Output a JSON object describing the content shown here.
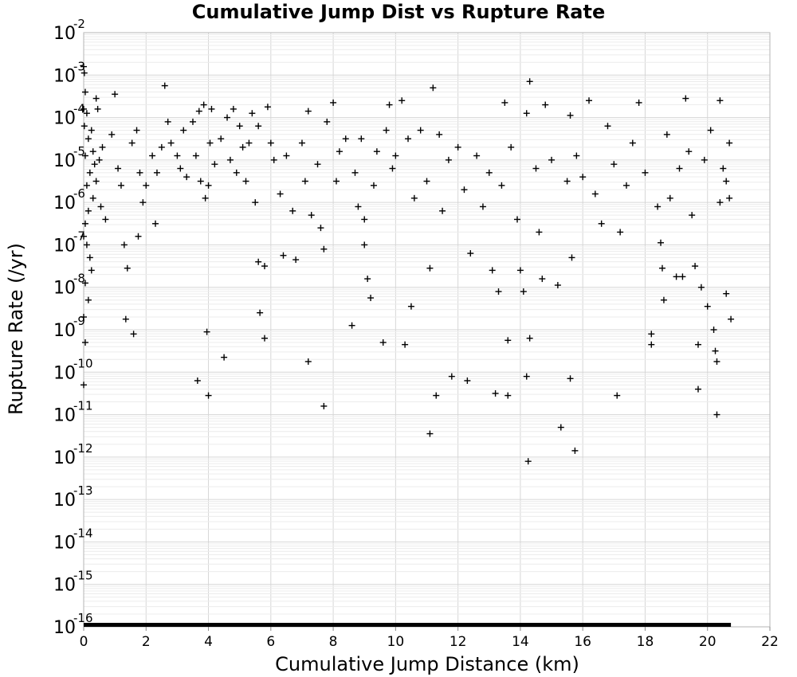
{
  "chart_data": {
    "type": "scatter",
    "title": "Cumulative Jump Dist vs Rupture Rate",
    "xlabel": "Cumulative Jump Distance (km)",
    "ylabel": "Rupture Rate (/yr)",
    "xlim": [
      0,
      22
    ],
    "ylim_log10": [
      -16,
      -2
    ],
    "yscale": "log",
    "grid": true,
    "marker": "plus",
    "marker_color": "#000000",
    "x_ticks": [
      0,
      2,
      4,
      6,
      8,
      10,
      12,
      14,
      16,
      18,
      20,
      22
    ],
    "y_tick_base": "10",
    "y_tick_exponents": [
      "-16",
      "-15",
      "-14",
      "-13",
      "-12",
      "-11",
      "-10",
      "-9",
      "-8",
      "-7",
      "-6",
      "-5",
      "-4",
      "-3",
      "-2"
    ],
    "floor_band": {
      "x_from": 0,
      "x_to": 20.75,
      "log10_y": -16
    },
    "points": [
      [
        0.0,
        -2.8
      ],
      [
        0.02,
        -2.95
      ],
      [
        0.05,
        -3.4
      ],
      [
        0.0,
        -3.8
      ],
      [
        0.1,
        -3.9
      ],
      [
        0.02,
        -4.2
      ],
      [
        0.15,
        -4.5
      ],
      [
        0.05,
        -4.9
      ],
      [
        0.25,
        -4.3
      ],
      [
        0.3,
        -4.8
      ],
      [
        0.4,
        -3.55
      ],
      [
        0.45,
        -3.8
      ],
      [
        0.35,
        -5.1
      ],
      [
        0.5,
        -5.0
      ],
      [
        0.6,
        -4.7
      ],
      [
        0.2,
        -5.3
      ],
      [
        0.1,
        -5.6
      ],
      [
        0.3,
        -5.9
      ],
      [
        0.15,
        -6.2
      ],
      [
        0.05,
        -6.5
      ],
      [
        0.4,
        -5.5
      ],
      [
        0.55,
        -6.1
      ],
      [
        0.7,
        -6.4
      ],
      [
        0.0,
        -6.8
      ],
      [
        0.1,
        -7.0
      ],
      [
        0.2,
        -7.3
      ],
      [
        0.25,
        -7.6
      ],
      [
        0.05,
        -7.9
      ],
      [
        0.15,
        -8.3
      ],
      [
        0.0,
        -8.7
      ],
      [
        0.05,
        -9.3
      ],
      [
        0.0,
        -10.3
      ],
      [
        0.9,
        -4.4
      ],
      [
        1.0,
        -3.45
      ],
      [
        1.1,
        -5.2
      ],
      [
        1.3,
        -7.0
      ],
      [
        1.4,
        -7.55
      ],
      [
        1.2,
        -5.6
      ],
      [
        1.35,
        -8.75
      ],
      [
        1.6,
        -9.1
      ],
      [
        1.55,
        -4.6
      ],
      [
        1.7,
        -4.3
      ],
      [
        1.8,
        -5.3
      ],
      [
        1.9,
        -6.0
      ],
      [
        2.0,
        -5.6
      ],
      [
        1.75,
        -6.8
      ],
      [
        2.2,
        -4.9
      ],
      [
        2.3,
        -6.5
      ],
      [
        2.35,
        -5.3
      ],
      [
        2.5,
        -4.7
      ],
      [
        2.6,
        -3.25
      ],
      [
        2.7,
        -4.1
      ],
      [
        2.8,
        -4.6
      ],
      [
        3.0,
        -4.9
      ],
      [
        3.1,
        -5.2
      ],
      [
        3.2,
        -4.3
      ],
      [
        3.3,
        -5.4
      ],
      [
        3.5,
        -4.1
      ],
      [
        3.6,
        -4.9
      ],
      [
        3.7,
        -3.85
      ],
      [
        3.75,
        -5.5
      ],
      [
        3.85,
        -3.7
      ],
      [
        3.9,
        -5.9
      ],
      [
        4.0,
        -5.6
      ],
      [
        4.05,
        -4.6
      ],
      [
        4.1,
        -3.8
      ],
      [
        4.2,
        -5.1
      ],
      [
        3.65,
        -10.2
      ],
      [
        3.95,
        -9.05
      ],
      [
        4.0,
        -10.55
      ],
      [
        4.5,
        -9.65
      ],
      [
        4.4,
        -4.5
      ],
      [
        4.6,
        -4.0
      ],
      [
        4.7,
        -5.0
      ],
      [
        4.8,
        -3.8
      ],
      [
        4.9,
        -5.3
      ],
      [
        5.0,
        -4.2
      ],
      [
        5.1,
        -4.7
      ],
      [
        5.2,
        -5.5
      ],
      [
        5.3,
        -4.6
      ],
      [
        5.4,
        -3.9
      ],
      [
        5.5,
        -6.0
      ],
      [
        5.6,
        -4.2
      ],
      [
        5.6,
        -7.4
      ],
      [
        5.65,
        -8.6
      ],
      [
        5.8,
        -9.2
      ],
      [
        5.8,
        -7.5
      ],
      [
        5.9,
        -3.75
      ],
      [
        6.0,
        -4.6
      ],
      [
        6.1,
        -5.0
      ],
      [
        6.3,
        -5.8
      ],
      [
        6.4,
        -7.25
      ],
      [
        6.5,
        -4.9
      ],
      [
        6.7,
        -6.2
      ],
      [
        6.8,
        -7.35
      ],
      [
        7.0,
        -4.6
      ],
      [
        7.2,
        -3.85
      ],
      [
        7.1,
        -5.5
      ],
      [
        7.3,
        -6.3
      ],
      [
        7.2,
        -9.75
      ],
      [
        7.5,
        -5.1
      ],
      [
        7.6,
        -6.6
      ],
      [
        7.7,
        -7.1
      ],
      [
        7.8,
        -4.1
      ],
      [
        7.7,
        -10.8
      ],
      [
        8.0,
        -3.65
      ],
      [
        8.1,
        -5.5
      ],
      [
        8.2,
        -4.8
      ],
      [
        8.4,
        -4.5
      ],
      [
        8.6,
        -8.9
      ],
      [
        8.7,
        -5.3
      ],
      [
        8.8,
        -6.1
      ],
      [
        8.9,
        -4.5
      ],
      [
        9.0,
        -6.4
      ],
      [
        9.1,
        -7.8
      ],
      [
        9.2,
        -8.25
      ],
      [
        9.0,
        -7.0
      ],
      [
        9.3,
        -5.6
      ],
      [
        9.4,
        -4.8
      ],
      [
        9.6,
        -9.3
      ],
      [
        9.7,
        -4.3
      ],
      [
        9.8,
        -3.7
      ],
      [
        9.9,
        -5.2
      ],
      [
        10.0,
        -4.9
      ],
      [
        10.2,
        -3.6
      ],
      [
        10.3,
        -9.35
      ],
      [
        10.5,
        -8.45
      ],
      [
        10.4,
        -4.5
      ],
      [
        10.6,
        -5.9
      ],
      [
        10.8,
        -4.3
      ],
      [
        11.0,
        -5.5
      ],
      [
        11.1,
        -7.55
      ],
      [
        11.1,
        -11.45
      ],
      [
        11.2,
        -3.3
      ],
      [
        11.3,
        -10.55
      ],
      [
        11.4,
        -4.4
      ],
      [
        11.5,
        -6.2
      ],
      [
        11.7,
        -5.0
      ],
      [
        11.8,
        -10.1
      ],
      [
        12.0,
        -4.7
      ],
      [
        12.2,
        -5.7
      ],
      [
        12.3,
        -10.2
      ],
      [
        12.4,
        -7.2
      ],
      [
        12.6,
        -4.9
      ],
      [
        12.8,
        -6.1
      ],
      [
        13.0,
        -5.3
      ],
      [
        13.1,
        -7.6
      ],
      [
        13.2,
        -10.5
      ],
      [
        13.3,
        -8.1
      ],
      [
        13.4,
        -5.6
      ],
      [
        13.5,
        -3.65
      ],
      [
        13.6,
        -10.55
      ],
      [
        13.6,
        -9.25
      ],
      [
        13.7,
        -4.7
      ],
      [
        13.9,
        -6.4
      ],
      [
        14.0,
        -7.6
      ],
      [
        14.1,
        -8.1
      ],
      [
        14.2,
        -3.9
      ],
      [
        14.3,
        -3.15
      ],
      [
        14.2,
        -10.1
      ],
      [
        14.3,
        -9.2
      ],
      [
        14.25,
        -12.1
      ],
      [
        14.5,
        -5.2
      ],
      [
        14.6,
        -6.7
      ],
      [
        14.7,
        -7.8
      ],
      [
        14.8,
        -3.7
      ],
      [
        15.0,
        -5.0
      ],
      [
        15.2,
        -7.95
      ],
      [
        15.3,
        -11.3
      ],
      [
        15.5,
        -5.5
      ],
      [
        15.6,
        -3.95
      ],
      [
        15.6,
        -10.15
      ],
      [
        15.65,
        -7.3
      ],
      [
        15.75,
        -11.85
      ],
      [
        15.8,
        -4.9
      ],
      [
        16.0,
        -5.4
      ],
      [
        16.2,
        -3.6
      ],
      [
        16.4,
        -5.8
      ],
      [
        16.6,
        -6.5
      ],
      [
        16.8,
        -4.2
      ],
      [
        17.0,
        -5.1
      ],
      [
        17.1,
        -10.55
      ],
      [
        17.2,
        -6.7
      ],
      [
        17.4,
        -5.6
      ],
      [
        17.6,
        -4.6
      ],
      [
        17.8,
        -3.65
      ],
      [
        18.0,
        -5.3
      ],
      [
        18.2,
        -9.1
      ],
      [
        18.2,
        -9.35
      ],
      [
        18.4,
        -6.1
      ],
      [
        18.5,
        -6.95
      ],
      [
        18.55,
        -7.55
      ],
      [
        18.6,
        -8.3
      ],
      [
        18.7,
        -4.4
      ],
      [
        18.8,
        -5.9
      ],
      [
        19.0,
        -7.75
      ],
      [
        19.1,
        -5.2
      ],
      [
        19.2,
        -7.75
      ],
      [
        19.3,
        -3.55
      ],
      [
        19.4,
        -4.8
      ],
      [
        19.5,
        -6.3
      ],
      [
        19.6,
        -7.5
      ],
      [
        19.7,
        -9.35
      ],
      [
        19.7,
        -10.4
      ],
      [
        19.8,
        -8.0
      ],
      [
        19.9,
        -5.0
      ],
      [
        20.0,
        -8.45
      ],
      [
        20.1,
        -4.3
      ],
      [
        20.2,
        -9.0
      ],
      [
        20.25,
        -9.5
      ],
      [
        20.3,
        -9.75
      ],
      [
        20.3,
        -11.0
      ],
      [
        20.4,
        -3.6
      ],
      [
        20.4,
        -6.0
      ],
      [
        20.5,
        -5.2
      ],
      [
        20.6,
        -8.15
      ],
      [
        20.7,
        -5.9
      ],
      [
        20.75,
        -8.75
      ],
      [
        20.7,
        -4.6
      ],
      [
        20.6,
        -5.5
      ]
    ]
  }
}
